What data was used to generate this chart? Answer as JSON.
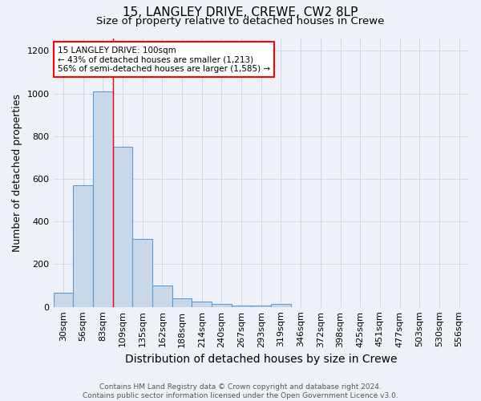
{
  "title1": "15, LANGLEY DRIVE, CREWE, CW2 8LP",
  "title2": "Size of property relative to detached houses in Crewe",
  "xlabel": "Distribution of detached houses by size in Crewe",
  "ylabel": "Number of detached properties",
  "categories": [
    "30sqm",
    "56sqm",
    "83sqm",
    "109sqm",
    "135sqm",
    "162sqm",
    "188sqm",
    "214sqm",
    "240sqm",
    "267sqm",
    "293sqm",
    "319sqm",
    "346sqm",
    "372sqm",
    "398sqm",
    "425sqm",
    "451sqm",
    "477sqm",
    "503sqm",
    "530sqm",
    "556sqm"
  ],
  "values": [
    65,
    570,
    1010,
    750,
    320,
    100,
    40,
    25,
    12,
    8,
    7,
    12,
    0,
    0,
    0,
    0,
    0,
    0,
    0,
    0,
    0
  ],
  "bar_color": "#c8d8e8",
  "bar_edge_color": "#5b9bd5",
  "grid_color": "#d0d8e8",
  "bg_color": "#eef2f8",
  "annotation_text": "15 LANGLEY DRIVE: 100sqm\n← 43% of detached houses are smaller (1,213)\n56% of semi-detached houses are larger (1,585) →",
  "annotation_box_color": "white",
  "annotation_box_edge": "red",
  "red_line_x": 2.5,
  "ylim": [
    0,
    1260
  ],
  "yticks": [
    0,
    200,
    400,
    600,
    800,
    1000,
    1200
  ],
  "footer": "Contains HM Land Registry data © Crown copyright and database right 2024.\nContains public sector information licensed under the Open Government Licence v3.0.",
  "title1_fontsize": 11,
  "title2_fontsize": 9.5,
  "xlabel_fontsize": 10,
  "ylabel_fontsize": 9,
  "tick_fontsize": 8,
  "footer_fontsize": 6.5,
  "annotation_fontsize": 7.5
}
